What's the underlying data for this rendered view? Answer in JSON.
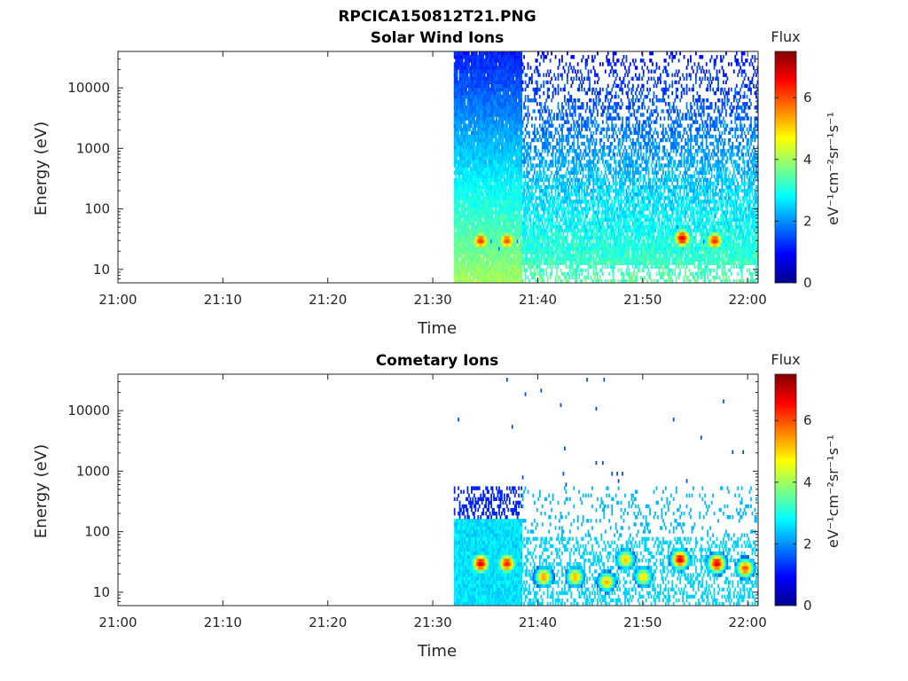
{
  "figure_title": "RPCICA150812T21.PNG",
  "chart_data": [
    {
      "type": "heatmap",
      "title": "Solar Wind Ions",
      "xlabel": "Time",
      "ylabel": "Energy (eV)",
      "x_ticks": [
        "21:00",
        "21:10",
        "21:20",
        "21:30",
        "21:40",
        "21:50",
        "22:00"
      ],
      "x_range": [
        "21:00",
        "22:01"
      ],
      "y_ticks": [
        "10",
        "100",
        "1000",
        "10000"
      ],
      "y_scale": "log",
      "y_range": [
        6,
        40000
      ],
      "data_start": "21:32",
      "hotspots": [
        {
          "time": "21:34.5",
          "energy_eV": 30,
          "flux": 6.2
        },
        {
          "time": "21:37",
          "energy_eV": 30,
          "flux": 6.0
        },
        {
          "time": "21:53.7",
          "energy_eV": 33,
          "flux": 6.8
        },
        {
          "time": "21:56.8",
          "energy_eV": 30,
          "flux": 6.3
        }
      ],
      "colorbar": {
        "title": "Flux",
        "unit": "eV⁻¹cm⁻²sr⁻¹s⁻¹",
        "ticks": [
          "0",
          "2",
          "4",
          "6"
        ],
        "range": [
          0,
          7.5
        ],
        "colormap": "jet"
      }
    },
    {
      "type": "heatmap",
      "title": "Cometary Ions",
      "xlabel": "Time",
      "ylabel": "Energy (eV)",
      "x_ticks": [
        "21:00",
        "21:10",
        "21:20",
        "21:30",
        "21:40",
        "21:50",
        "22:00"
      ],
      "x_range": [
        "21:00",
        "22:01"
      ],
      "y_ticks": [
        "10",
        "100",
        "1000",
        "10000"
      ],
      "y_scale": "log",
      "y_range": [
        6,
        40000
      ],
      "data_start": "21:32",
      "hotspots": [
        {
          "time": "21:34.5",
          "energy_eV": 30,
          "flux": 6.8
        },
        {
          "time": "21:37",
          "energy_eV": 30,
          "flux": 6.4
        },
        {
          "time": "21:40.5",
          "energy_eV": 18,
          "flux": 5.5
        },
        {
          "time": "21:43.5",
          "energy_eV": 18,
          "flux": 5.3
        },
        {
          "time": "21:46.5",
          "energy_eV": 15,
          "flux": 5.3
        },
        {
          "time": "21:48.3",
          "energy_eV": 35,
          "flux": 5.2
        },
        {
          "time": "21:50",
          "energy_eV": 18,
          "flux": 5.0
        },
        {
          "time": "21:53.5",
          "energy_eV": 35,
          "flux": 6.8
        },
        {
          "time": "21:57",
          "energy_eV": 30,
          "flux": 6.8
        },
        {
          "time": "21:59.7",
          "energy_eV": 25,
          "flux": 6.0
        }
      ],
      "colorbar": {
        "title": "Flux",
        "unit": "eV⁻¹cm⁻²sr⁻¹s⁻¹",
        "ticks": [
          "0",
          "2",
          "4",
          "6"
        ],
        "range": [
          0,
          7.5
        ],
        "colormap": "jet"
      }
    }
  ],
  "colors": {
    "background": "#ffffff",
    "axis": "#262626"
  }
}
